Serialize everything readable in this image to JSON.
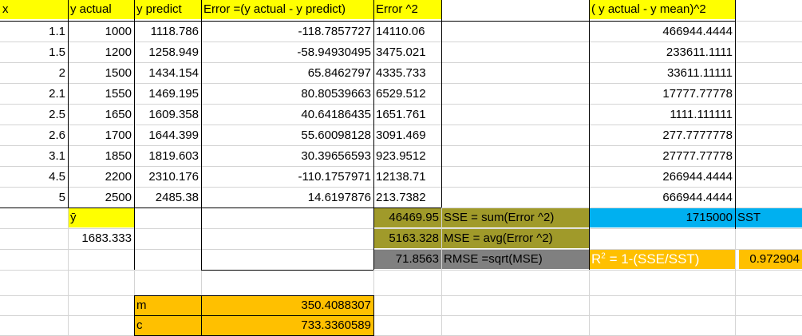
{
  "headers": {
    "x": "x",
    "y_actual": "y actual",
    "y_predict": "y predict",
    "error": "Error =(y actual - y predict)",
    "error_sq": "Error ^2",
    "y_mean_sq": "( y actual - y mean)^2"
  },
  "rows": [
    {
      "x": "1.1",
      "y_actual": "1000",
      "y_predict": "1118.786",
      "error": "-118.7857727",
      "error_sq": "14110.06",
      "y_mean_sq": "466944.4444"
    },
    {
      "x": "1.5",
      "y_actual": "1200",
      "y_predict": "1258.949",
      "error": "-58.94930495",
      "error_sq": "3475.021",
      "y_mean_sq": "233611.1111"
    },
    {
      "x": "2",
      "y_actual": "1500",
      "y_predict": "1434.154",
      "error": "65.8462797",
      "error_sq": "4335.733",
      "y_mean_sq": "33611.11111"
    },
    {
      "x": "2.1",
      "y_actual": "1550",
      "y_predict": "1469.195",
      "error": "80.80539663",
      "error_sq": "6529.512",
      "y_mean_sq": "17777.77778"
    },
    {
      "x": "2.5",
      "y_actual": "1650",
      "y_predict": "1609.358",
      "error": "40.64186435",
      "error_sq": "1651.761",
      "y_mean_sq": "1111.111111"
    },
    {
      "x": "2.6",
      "y_actual": "1700",
      "y_predict": "1644.399",
      "error": "55.60098128",
      "error_sq": "3091.469",
      "y_mean_sq": "277.7777778"
    },
    {
      "x": "3.1",
      "y_actual": "1850",
      "y_predict": "1819.603",
      "error": "30.39656593",
      "error_sq": "923.9512",
      "y_mean_sq": "27777.77778"
    },
    {
      "x": "4.5",
      "y_actual": "2200",
      "y_predict": "2310.176",
      "error": "-110.1757971",
      "error_sq": "12138.71",
      "y_mean_sq": "266944.4444"
    },
    {
      "x": "5",
      "y_actual": "2500",
      "y_predict": "2485.38",
      "error": "14.6197876",
      "error_sq": "213.7382",
      "y_mean_sq": "666944.4444"
    }
  ],
  "y_mean": {
    "label": "ȳ",
    "value": "1683.333"
  },
  "sse": {
    "value": "46469.95",
    "label": "SSE = sum(Error ^2)"
  },
  "mse": {
    "value": "5163.328",
    "label": "MSE = avg(Error ^2)"
  },
  "rmse": {
    "value": "71.8563",
    "label": "RMSE =sqrt(MSE)"
  },
  "sst": {
    "value": "1715000",
    "label": "SST"
  },
  "r2": {
    "label_base": "R",
    "label_sup": "2",
    "label_rest": " = 1-(SSE/SST)",
    "value": "0.972904"
  },
  "params": {
    "m_label": "m",
    "m_value": "350.4088307",
    "c_label": "c",
    "c_value": "733.3360589"
  },
  "colors": {
    "yellow": "#ffff00",
    "orange": "#ffc000",
    "olive": "#a09a2a",
    "gray": "#808080",
    "blue": "#00b0f0"
  }
}
